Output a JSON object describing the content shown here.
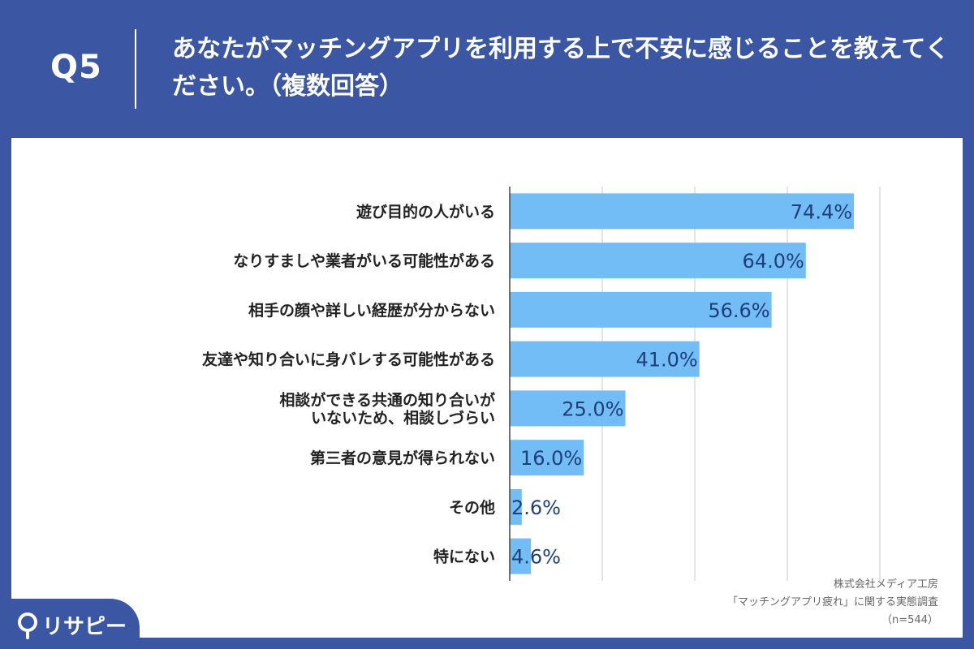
{
  "header": {
    "question_number": "Q5",
    "question_text": "あなたがマッチングアプリを利用する上で不安に感じることを教えてください。（複数回答）"
  },
  "source": {
    "line1": "株式会社メディア工房",
    "line2": "「マッチングアプリ疲れ」に関する実態調査",
    "line3": "（n=544）"
  },
  "logo": {
    "text": "リサピー",
    "icon": "location-pin-icon"
  },
  "colors": {
    "background": "#3b56a3",
    "bar": "#72bdf6",
    "value_text": "#1f3f7a"
  },
  "chart_data": {
    "type": "bar",
    "orientation": "horizontal",
    "categories": [
      "遊び目的の人がいる",
      "なりすましや業者がいる可能性がある",
      "相手の顔や詳しい経歴が分からない",
      "友達や知り合いに身バレする可能性がある",
      "相談ができる共通の知り合いが\nいないため、相談しづらい",
      "第三者の意見が得られない",
      "その他",
      "特にない"
    ],
    "values": [
      74.4,
      64.0,
      56.6,
      41.0,
      25.0,
      16.0,
      2.6,
      4.6
    ],
    "value_labels": [
      "74.4%",
      "64.0%",
      "56.6%",
      "41.0%",
      "25.0%",
      "16.0%",
      "2.6%",
      "4.6%"
    ],
    "xlim": [
      0,
      80
    ],
    "grid": true
  }
}
